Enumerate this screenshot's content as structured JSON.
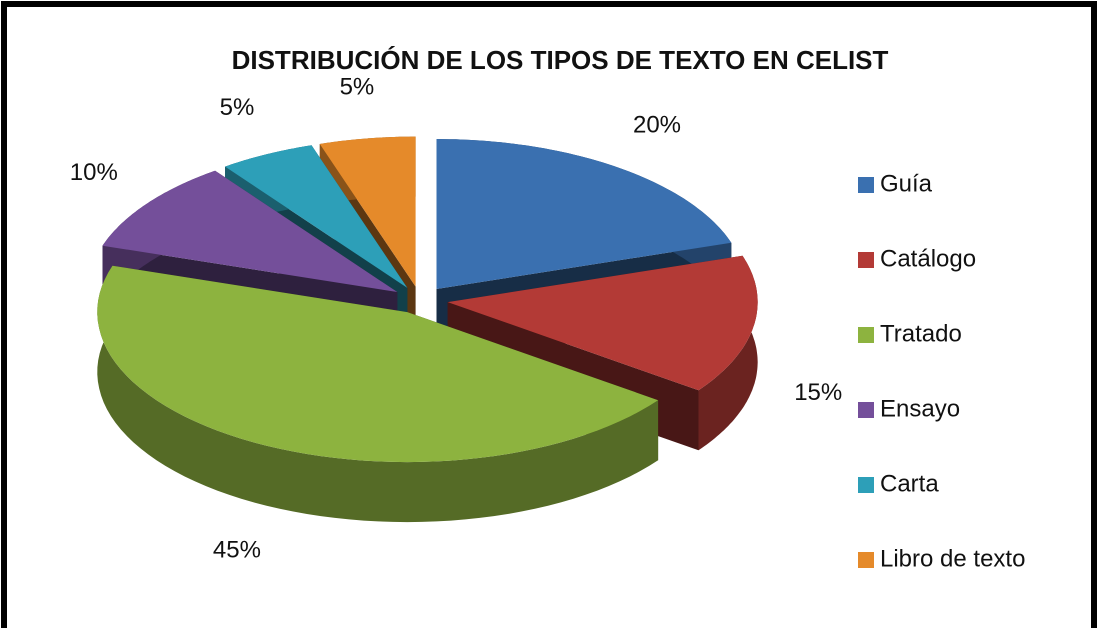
{
  "chart_data": {
    "type": "pie3d",
    "title": "DISTRIBUCIÓN DE LOS TIPOS DE TEXTO EN CELIST",
    "categories": [
      "Guía",
      "Catálogo",
      "Tratado",
      "Ensayo",
      "Carta",
      "Libro de texto"
    ],
    "values": [
      20,
      15,
      45,
      10,
      5,
      5
    ],
    "value_labels": [
      "20%",
      "15%",
      "45%",
      "10%",
      "5%",
      "5%"
    ],
    "colors": [
      "#3a70b0",
      "#b33a36",
      "#8db33f",
      "#744f9a",
      "#2d9fb8",
      "#e58a2a"
    ],
    "legend": "right"
  }
}
